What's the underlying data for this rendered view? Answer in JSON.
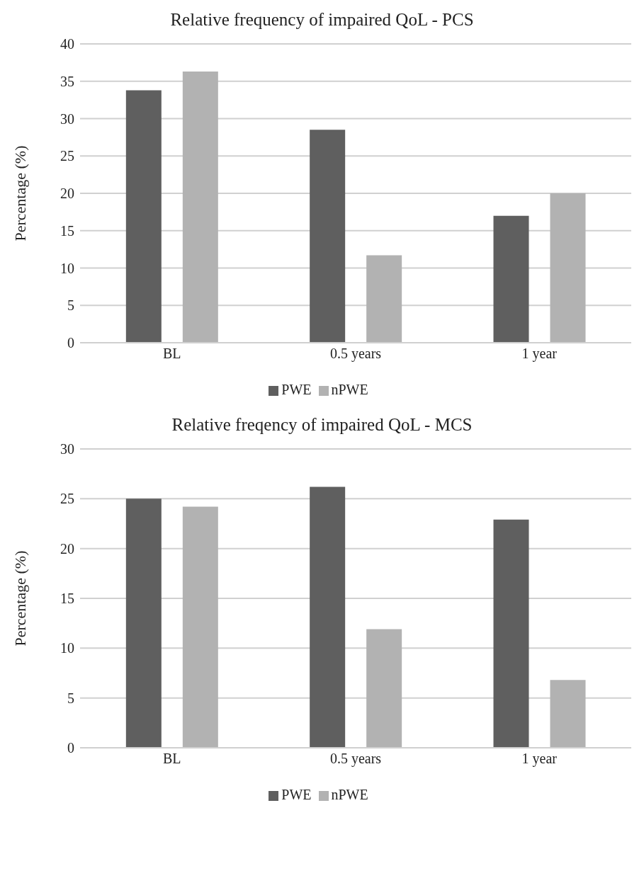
{
  "chart_data": [
    {
      "type": "bar",
      "title": "Relative frequency of impaired QoL - PCS",
      "ylabel": "Percentage (%)",
      "categories": [
        "BL",
        "0.5 years",
        "1 year"
      ],
      "series": [
        {
          "name": "PWE",
          "color": "#5f5f5f",
          "values": [
            33.8,
            28.5,
            17.0
          ]
        },
        {
          "name": "nPWE",
          "color": "#b2b2b2",
          "values": [
            36.3,
            11.7,
            20.0
          ]
        }
      ],
      "ylim": [
        0,
        40
      ],
      "yticks": [
        0,
        5,
        10,
        15,
        20,
        25,
        30,
        35,
        40
      ],
      "grid": "y",
      "legend": "bottom"
    },
    {
      "type": "bar",
      "title": "Relative freqency of impaired QoL - MCS",
      "ylabel": "Percentage (%)",
      "categories": [
        "BL",
        "0.5 years",
        "1 year"
      ],
      "series": [
        {
          "name": "PWE",
          "color": "#5f5f5f",
          "values": [
            25.0,
            26.2,
            22.9
          ]
        },
        {
          "name": "nPWE",
          "color": "#b2b2b2",
          "values": [
            24.2,
            11.9,
            6.8
          ]
        }
      ],
      "ylim": [
        0,
        30
      ],
      "yticks": [
        0,
        5,
        10,
        15,
        20,
        25,
        30
      ],
      "grid": "y",
      "legend": "bottom"
    }
  ]
}
